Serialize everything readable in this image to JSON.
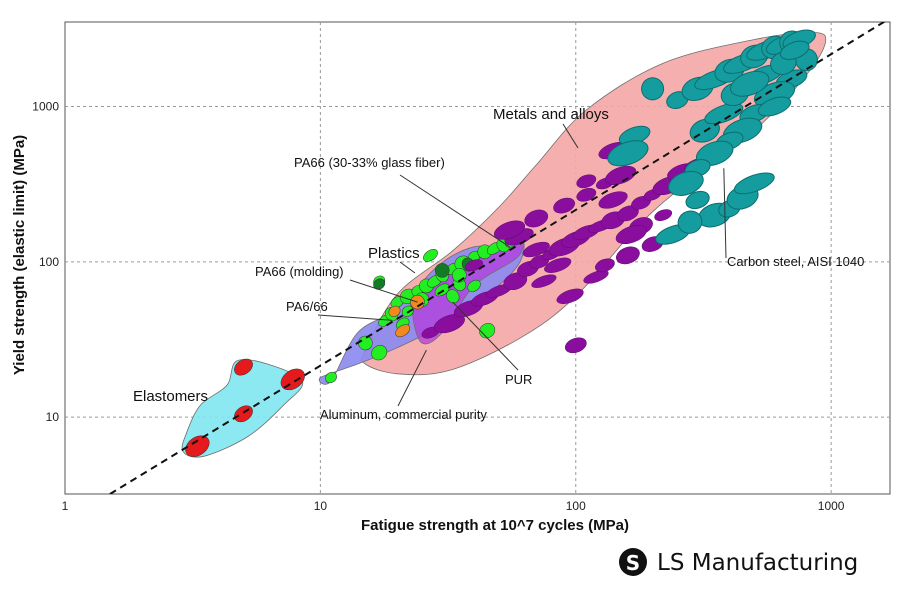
{
  "chart_data": {
    "type": "scatter",
    "title": "",
    "xlabel": "Fatigue strength at 10^7 cycles (MPa)",
    "ylabel": "Yield strength (elastic limit) (MPa)",
    "xscale": "log",
    "yscale": "log",
    "xlim": [
      1,
      1700
    ],
    "ylim": [
      3.2,
      3500
    ],
    "x_ticks": [
      1,
      10,
      100,
      1000
    ],
    "y_ticks": [
      10,
      100,
      1000
    ],
    "x_tick_labels": [
      "1",
      "10",
      "100",
      "1000"
    ],
    "y_tick_labels": [
      "10",
      "100",
      "1000"
    ],
    "grid": true,
    "guideline": {
      "style": "dashed",
      "points": [
        [
          1.5,
          3.2
        ],
        [
          1700,
          3700
        ]
      ]
    },
    "families": [
      {
        "name": "Elastomers",
        "color": "#7FE6F0",
        "outline": [
          [
            3,
            8
          ],
          [
            3.4,
            12
          ],
          [
            4.3,
            16
          ],
          [
            4.7,
            23
          ],
          [
            6.2,
            22
          ],
          [
            8.5,
            17
          ],
          [
            7.2,
            12
          ],
          [
            5.2,
            7.5
          ],
          [
            3.5,
            5.6
          ],
          [
            2.9,
            6
          ]
        ]
      },
      {
        "name": "Plastics",
        "color": "#8A8AF0",
        "outline": [
          [
            11,
            17
          ],
          [
            14,
            35
          ],
          [
            20,
            50
          ],
          [
            29,
            95
          ],
          [
            40,
            125
          ],
          [
            52,
            120
          ],
          [
            62,
            140
          ],
          [
            58,
            90
          ],
          [
            35,
            45
          ],
          [
            20,
            28
          ],
          [
            14,
            22
          ],
          [
            10,
            18
          ]
        ]
      },
      {
        "name": "Metals and alloys",
        "color": "#F5A6A6",
        "outline": [
          [
            15,
            27
          ],
          [
            20,
            62
          ],
          [
            33,
            118
          ],
          [
            50,
            225
          ],
          [
            70,
            420
          ],
          [
            110,
            950
          ],
          [
            220,
            1900
          ],
          [
            500,
            2700
          ],
          [
            850,
            3000
          ],
          [
            950,
            2600
          ],
          [
            800,
            1600
          ],
          [
            500,
            700
          ],
          [
            200,
            210
          ],
          [
            100,
            60
          ],
          [
            60,
            32
          ],
          [
            32,
            20
          ],
          [
            20,
            19
          ],
          [
            15,
            22
          ]
        ]
      },
      {
        "name": "PUR",
        "color": "#B43CDB",
        "outline": [
          [
            24,
            60
          ],
          [
            45,
            120
          ],
          [
            60,
            160
          ],
          [
            60,
            110
          ],
          [
            40,
            70
          ],
          [
            30,
            35
          ],
          [
            25,
            30
          ],
          [
            23,
            45
          ]
        ]
      }
    ],
    "points": [
      {
        "group": "Elastomers",
        "color": "#E41A1C",
        "items": [
          [
            5.0,
            21
          ],
          [
            3.3,
            6.5
          ],
          [
            5.0,
            10.5
          ],
          [
            7.8,
            17.5
          ]
        ]
      },
      {
        "group": "Plastics",
        "color": "#22EE22",
        "items": [
          [
            11,
            18
          ],
          [
            15,
            30
          ],
          [
            18,
            42
          ],
          [
            19,
            46
          ],
          [
            20,
            55
          ],
          [
            22,
            60
          ],
          [
            24,
            65
          ],
          [
            26,
            70
          ],
          [
            28,
            75
          ],
          [
            30,
            82
          ],
          [
            33,
            90
          ],
          [
            36,
            98
          ],
          [
            40,
            108
          ],
          [
            44,
            116
          ],
          [
            48,
            122
          ],
          [
            52,
            128
          ],
          [
            56,
            135
          ],
          [
            17,
            26
          ],
          [
            22,
            48
          ],
          [
            25,
            57
          ],
          [
            30,
            66
          ],
          [
            35,
            72
          ],
          [
            21,
            40
          ],
          [
            45,
            36
          ],
          [
            17,
            75
          ],
          [
            35,
            82
          ],
          [
            27,
            110
          ],
          [
            33,
            60
          ],
          [
            40,
            70
          ]
        ]
      },
      {
        "group": "Plastics",
        "color": "#137A25",
        "items": [
          [
            17,
            72
          ],
          [
            30,
            88
          ],
          [
            45,
            58
          ],
          [
            38,
            96
          ]
        ]
      },
      {
        "group": "Plastics",
        "color": "#F08A1F",
        "items": [
          [
            19.5,
            48
          ],
          [
            24,
            55
          ],
          [
            21,
            36
          ]
        ]
      },
      {
        "group": "Metals and alloys",
        "color": "#8A0E9E",
        "items": [
          [
            27,
            35
          ],
          [
            32,
            40
          ],
          [
            38,
            50
          ],
          [
            44,
            58
          ],
          [
            50,
            65
          ],
          [
            58,
            75
          ],
          [
            65,
            90
          ],
          [
            72,
            100
          ],
          [
            80,
            112
          ],
          [
            90,
            125
          ],
          [
            100,
            140
          ],
          [
            110,
            155
          ],
          [
            125,
            170
          ],
          [
            140,
            185
          ],
          [
            160,
            205
          ],
          [
            180,
            240
          ],
          [
            200,
            270
          ],
          [
            230,
            310
          ],
          [
            260,
            380
          ],
          [
            300,
            420
          ],
          [
            350,
            500
          ],
          [
            70,
            190
          ],
          [
            90,
            230
          ],
          [
            110,
            270
          ],
          [
            130,
            320
          ],
          [
            150,
            360
          ],
          [
            60,
            145
          ],
          [
            85,
            95
          ],
          [
            120,
            80
          ],
          [
            160,
            110
          ],
          [
            200,
            130
          ],
          [
            110,
            330
          ],
          [
            40,
            95
          ],
          [
            55,
            160
          ],
          [
            140,
            520
          ],
          [
            95,
            60
          ],
          [
            75,
            75
          ],
          [
            180,
            170
          ],
          [
            100,
            29
          ],
          [
            130,
            95
          ],
          [
            220,
            200
          ],
          [
            165,
            150
          ],
          [
            140,
            250
          ],
          [
            70,
            120
          ]
        ]
      },
      {
        "group": "Carbon steel",
        "color": "#159C9E",
        "items": [
          [
            250,
            1100
          ],
          [
            300,
            1300
          ],
          [
            350,
            1500
          ],
          [
            400,
            1700
          ],
          [
            450,
            1900
          ],
          [
            500,
            2100
          ],
          [
            550,
            2300
          ],
          [
            600,
            2400
          ],
          [
            650,
            2500
          ],
          [
            700,
            2600
          ],
          [
            750,
            2700
          ],
          [
            800,
            2000
          ],
          [
            700,
            1500
          ],
          [
            600,
            1200
          ],
          [
            500,
            900
          ],
          [
            450,
            700
          ],
          [
            400,
            600
          ],
          [
            350,
            500
          ],
          [
            300,
            400
          ],
          [
            270,
            320
          ],
          [
            300,
            250
          ],
          [
            350,
            200
          ],
          [
            400,
            220
          ],
          [
            450,
            260
          ],
          [
            500,
            320
          ],
          [
            320,
            700
          ],
          [
            380,
            900
          ],
          [
            420,
            1200
          ],
          [
            550,
            1600
          ],
          [
            650,
            1900
          ],
          [
            240,
            150
          ],
          [
            280,
            180
          ],
          [
            600,
            1000
          ],
          [
            200,
            1300
          ],
          [
            170,
            650
          ],
          [
            160,
            500
          ],
          [
            720,
            2300
          ],
          [
            480,
            1400
          ]
        ]
      }
    ],
    "annotations": [
      {
        "text": "Elastomers",
        "target": "Elastomers"
      },
      {
        "text": "Plastics",
        "target": "Plastics"
      },
      {
        "text": "Metals and alloys",
        "target": "Metals and alloys"
      },
      {
        "text": "PA66 (30-33% glass fiber)",
        "target": [
          55,
          125
        ]
      },
      {
        "text": "PA66 (molding)",
        "target": [
          24,
          55
        ]
      },
      {
        "text": "PA6/66",
        "target": [
          19,
          42
        ]
      },
      {
        "text": "PUR",
        "target": [
          33,
          55
        ]
      },
      {
        "text": "Aluminum, commercial purity",
        "target": [
          26,
          27
        ]
      },
      {
        "text": "Carbon steel, AISI 1040",
        "target": [
          380,
          400
        ]
      }
    ]
  },
  "brand": {
    "name": "LS Manufacturing",
    "logo_glyph": "S"
  }
}
